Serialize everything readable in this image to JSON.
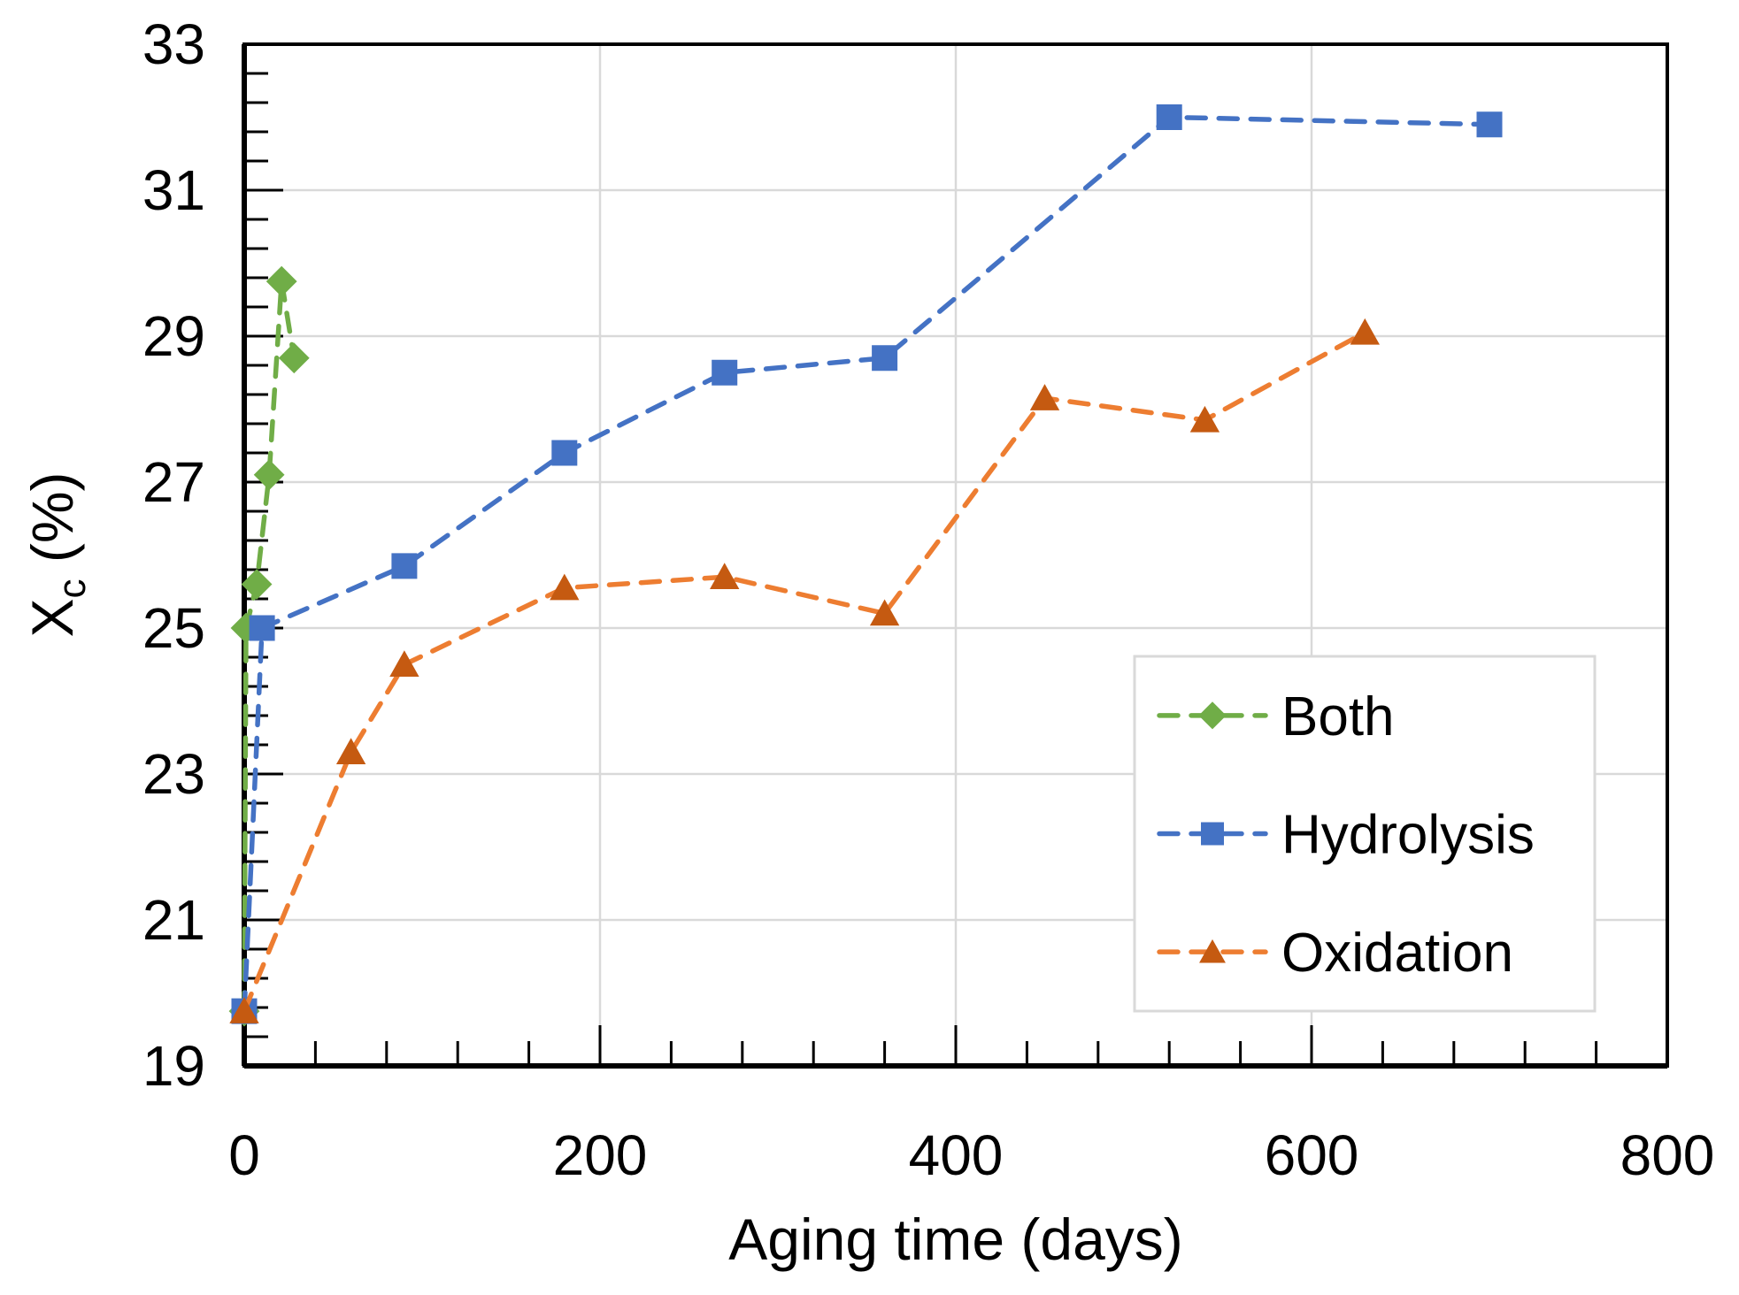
{
  "chart_data": {
    "type": "line",
    "title": "",
    "xlabel": "Aging time (days)",
    "ylabel": "Xc (%)",
    "ylabel_parts": {
      "main": "X",
      "sub": "c",
      "suffix": " (%)"
    },
    "xlim": [
      0,
      800
    ],
    "ylim": [
      19,
      33
    ],
    "x_major_step": 200,
    "x_minor_step": 40,
    "y_major_step": 2,
    "y_minor_step": 0.4,
    "x_ticks": [
      0,
      200,
      400,
      600,
      800
    ],
    "y_ticks": [
      19,
      21,
      23,
      25,
      27,
      29,
      31,
      33
    ],
    "grid": {
      "show_x": true,
      "show_y": true,
      "color": "#D9D9D9"
    },
    "axis_color": "#000000",
    "background": "#FFFFFF",
    "line_style": "dashed",
    "legend_position": "inside-right-lower",
    "series": [
      {
        "name": "Both",
        "marker": "diamond",
        "line_color": "#70AD47",
        "marker_color": "#70AD47",
        "points": [
          [
            0,
            19.75
          ],
          [
            1,
            25.0
          ],
          [
            7,
            25.6
          ],
          [
            14,
            27.1
          ],
          [
            21,
            29.75
          ],
          [
            28,
            28.7
          ]
        ]
      },
      {
        "name": "Hydrolysis",
        "marker": "square",
        "line_color": "#4472C4",
        "marker_color": "#4472C4",
        "points": [
          [
            0,
            19.75
          ],
          [
            10,
            25.0
          ],
          [
            90,
            25.85
          ],
          [
            180,
            27.4
          ],
          [
            270,
            28.5
          ],
          [
            360,
            28.7
          ],
          [
            520,
            32.0
          ],
          [
            700,
            31.9
          ]
        ]
      },
      {
        "name": "Oxidation",
        "marker": "triangle",
        "line_color": "#ED7D31",
        "marker_color": "#C55A11",
        "points": [
          [
            0,
            19.75
          ],
          [
            60,
            23.3
          ],
          [
            90,
            24.5
          ],
          [
            180,
            25.55
          ],
          [
            270,
            25.7
          ],
          [
            360,
            25.2
          ],
          [
            450,
            28.15
          ],
          [
            540,
            27.85
          ],
          [
            630,
            29.05
          ]
        ]
      }
    ]
  },
  "legend": {
    "border_color": "#D9D9D9",
    "fill": "#FFFFFF",
    "items": [
      {
        "label": "Both"
      },
      {
        "label": "Hydrolysis"
      },
      {
        "label": "Oxidation"
      }
    ]
  }
}
